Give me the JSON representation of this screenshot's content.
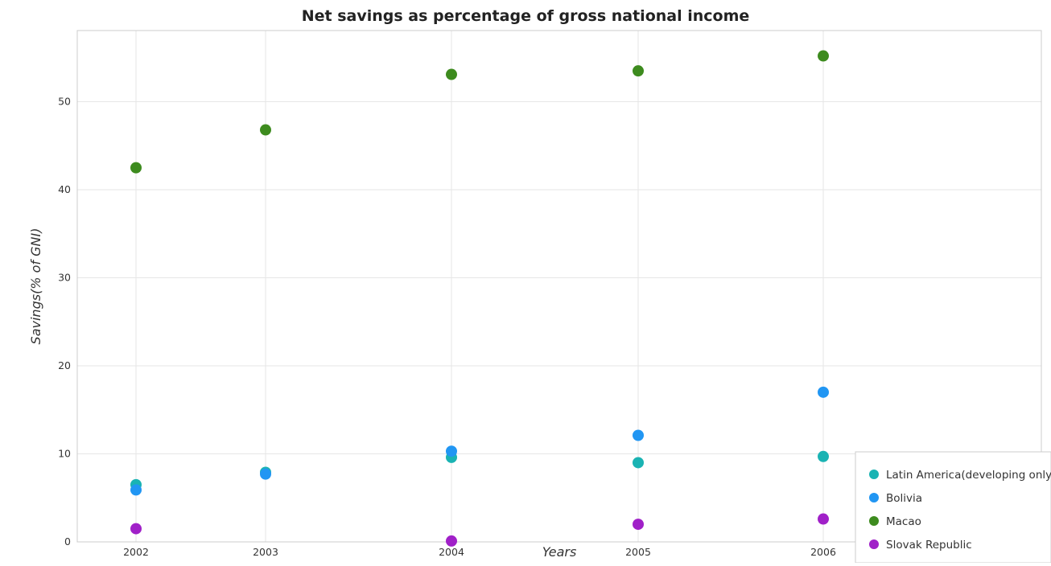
{
  "chart_data": {
    "type": "scatter",
    "title": "Net savings as percentage of gross national income",
    "xlabel": "Years",
    "ylabel": "Savings(% of GNI)",
    "categories": [
      "2002",
      "2003",
      "2004",
      "2005",
      "2006"
    ],
    "ylim": [
      0,
      58
    ],
    "yticks": [
      "0",
      "10",
      "20",
      "30",
      "40",
      "50"
    ],
    "grid": true,
    "legend_position": "bottom-right",
    "series": [
      {
        "name": "Latin America(developing only)",
        "color": "#1ab3b3",
        "values": [
          6.5,
          7.9,
          9.6,
          9.0,
          9.7
        ]
      },
      {
        "name": "Bolivia",
        "color": "#2196f3",
        "values": [
          5.9,
          7.7,
          10.3,
          12.1,
          17.0
        ]
      },
      {
        "name": "Macao",
        "color": "#3d8b1e",
        "values": [
          42.5,
          46.8,
          53.1,
          53.5,
          55.2
        ]
      },
      {
        "name": "Slovak Republic",
        "color": "#a020c8",
        "values": [
          1.5,
          null,
          0.1,
          2.0,
          2.6
        ]
      }
    ]
  }
}
